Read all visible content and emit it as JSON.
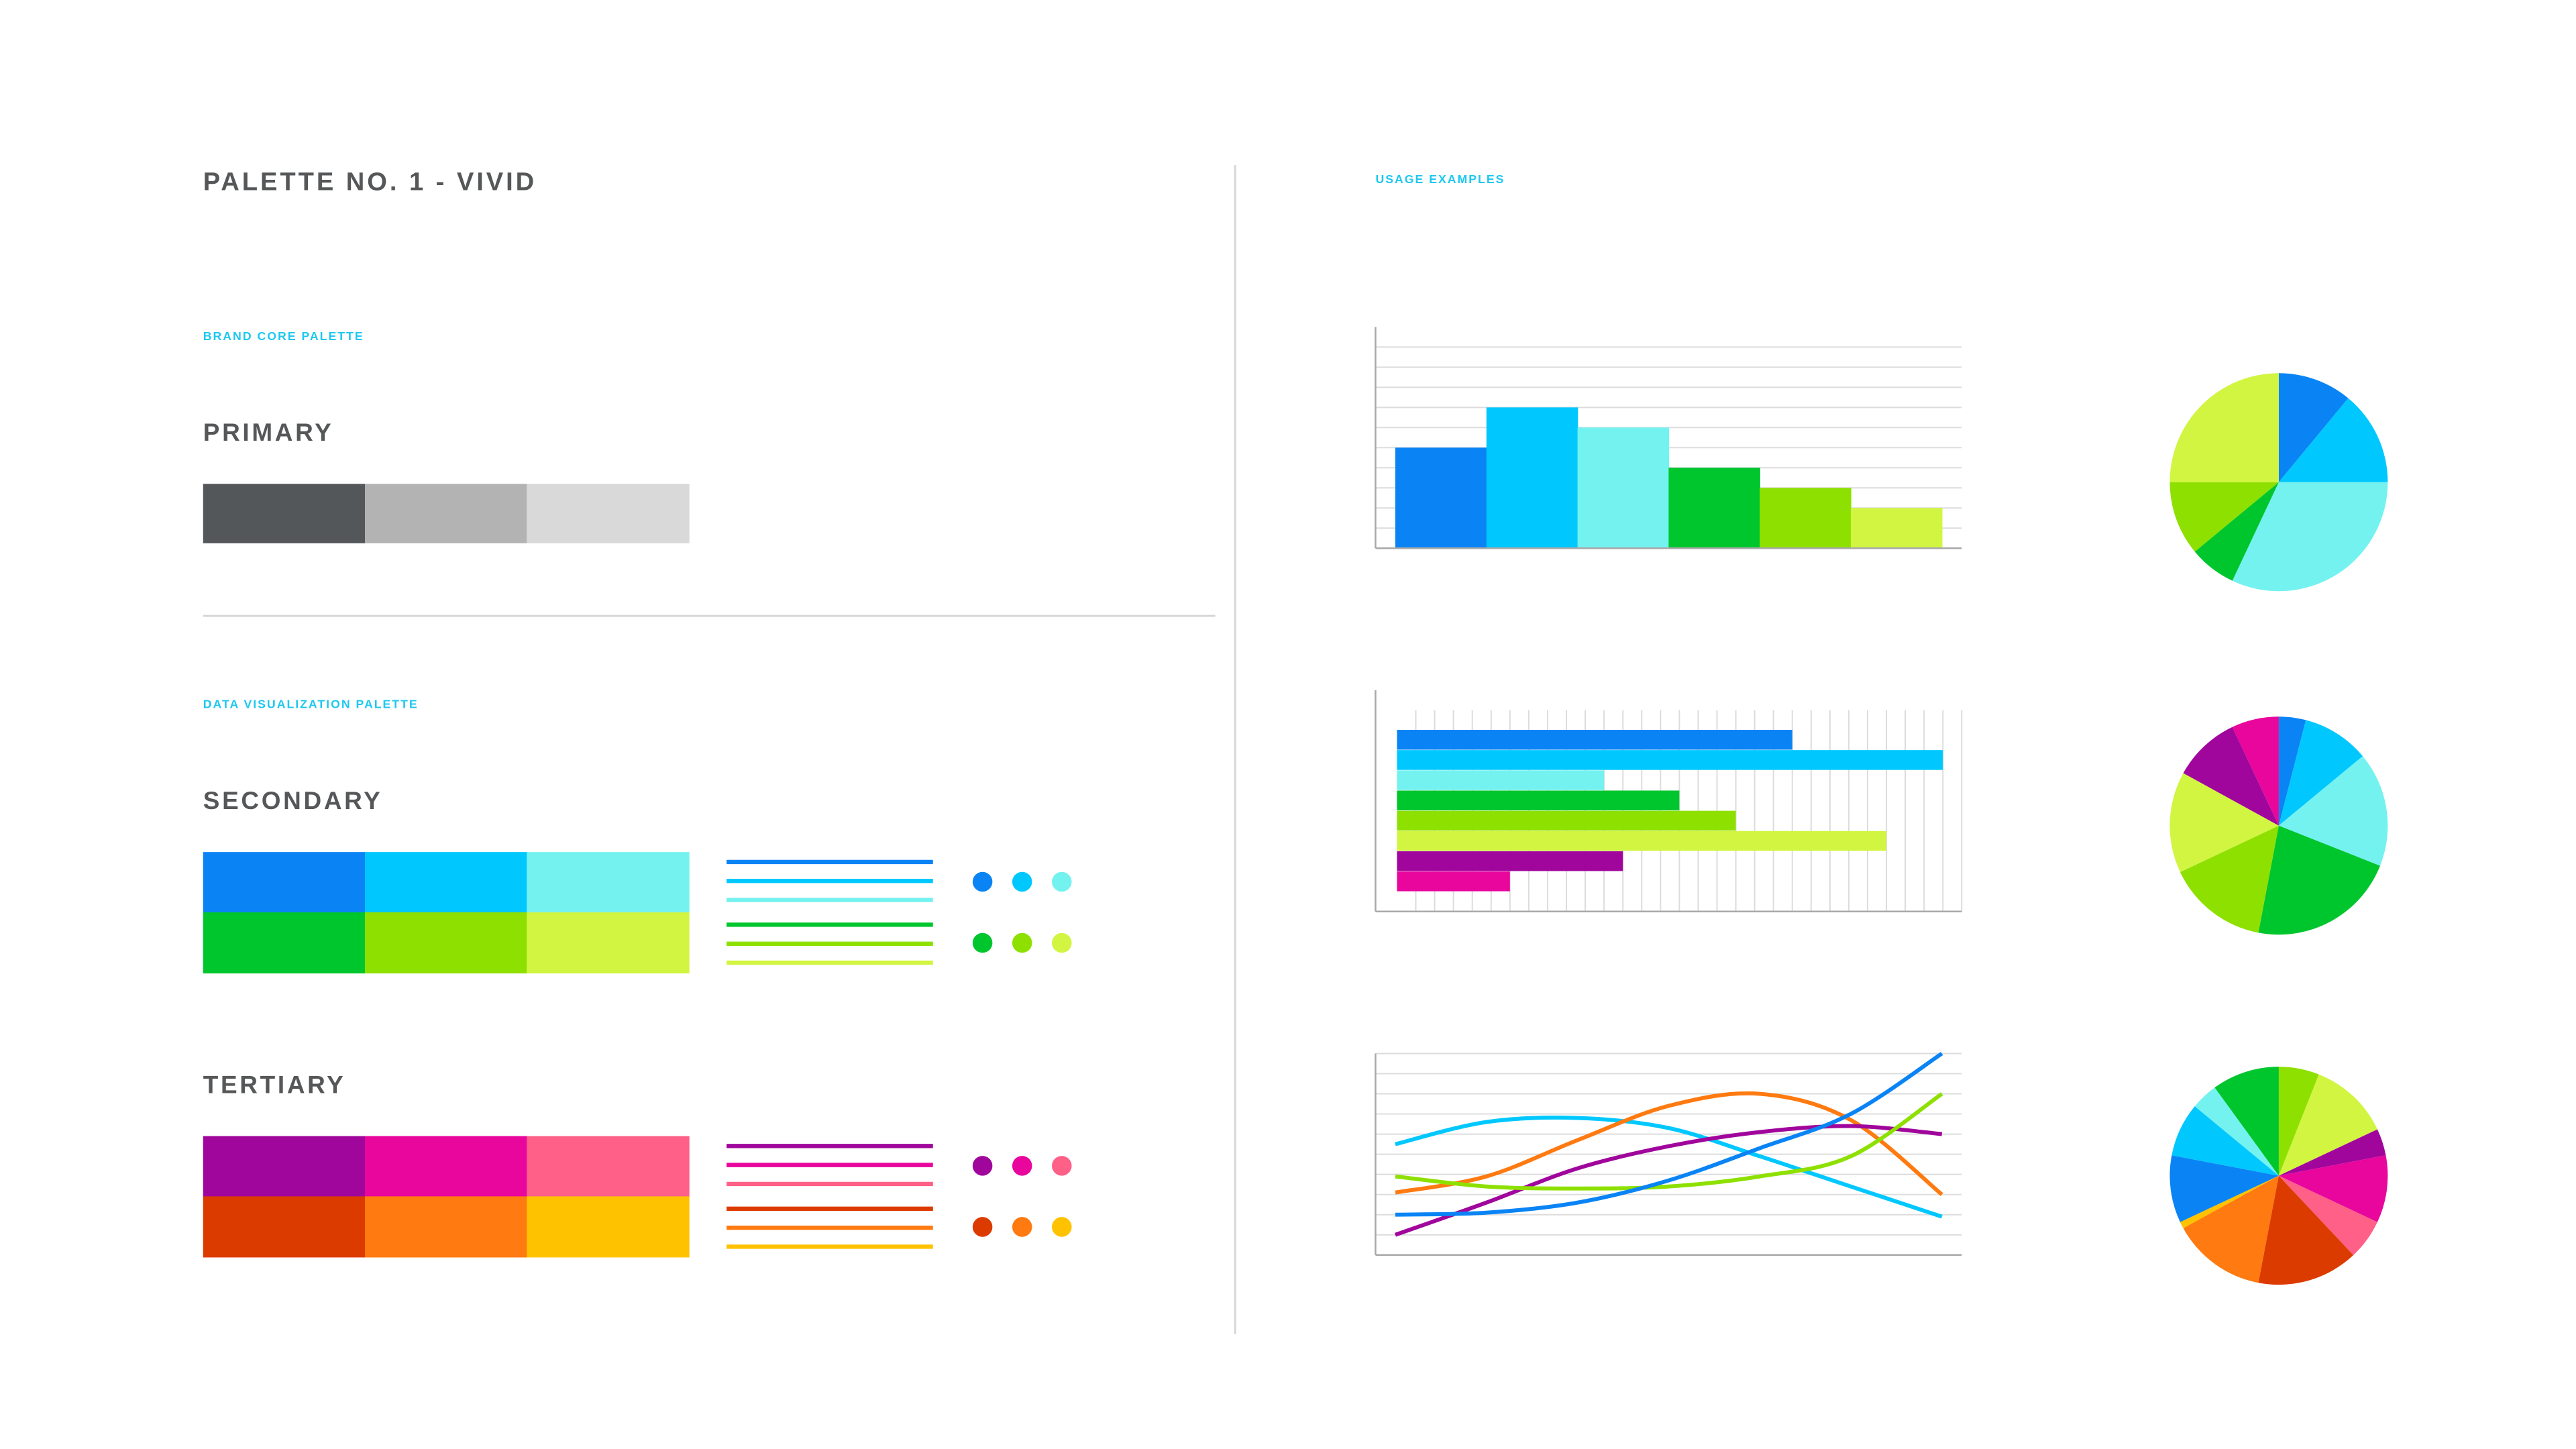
{
  "title": "PALETTE NO. 1 - VIVID",
  "usage_title": "USAGE EXAMPLES",
  "brand_core": {
    "label": "BRAND CORE PALETTE",
    "primary": {
      "title": "PRIMARY",
      "colors": [
        "#545759",
        "#b3b3b3",
        "#d9d9d9"
      ]
    }
  },
  "data_viz": {
    "label": "DATA VISUALIZATION PALETTE",
    "secondary": {
      "title": "SECONDARY",
      "colors": [
        "#0a84f5",
        "#00c8ff",
        "#74f2f0",
        "#00c62e",
        "#8ee000",
        "#d2f542"
      ]
    },
    "tertiary": {
      "title": "TERTIARY",
      "colors": [
        "#a0069c",
        "#e8069c",
        "#ff6088",
        "#dc3b00",
        "#ff7a10",
        "#ffc200"
      ]
    }
  },
  "chart_data": [
    {
      "type": "bar",
      "orientation": "vertical",
      "values": [
        5,
        7,
        6,
        4,
        3,
        2
      ],
      "colors": [
        "#0a84f5",
        "#00c8ff",
        "#74f2f0",
        "#00c62e",
        "#8ee000",
        "#d2f542"
      ],
      "ylim": [
        0,
        11
      ],
      "yticks": [
        1,
        2,
        3,
        4,
        5,
        6,
        7,
        8,
        9,
        10
      ],
      "grid": true
    },
    {
      "type": "bar",
      "orientation": "horizontal",
      "values": [
        21,
        29,
        11,
        15,
        18,
        26,
        12,
        6
      ],
      "colors": [
        "#0a84f5",
        "#00c8ff",
        "#74f2f0",
        "#00c62e",
        "#8ee000",
        "#d2f542",
        "#a0069c",
        "#e8069c"
      ],
      "xlim": [
        0,
        30
      ],
      "xticks": [
        1,
        2,
        3,
        4,
        5,
        6,
        7,
        8,
        9,
        10,
        11,
        12,
        13,
        14,
        15,
        16,
        17,
        18,
        19,
        20,
        21,
        22,
        23,
        24,
        25,
        26,
        27,
        28,
        29,
        30
      ],
      "grid": true
    },
    {
      "type": "line",
      "x": [
        0,
        1,
        2,
        3,
        4,
        5,
        6
      ],
      "xlim": [
        0,
        6
      ],
      "ylim": [
        0,
        10
      ],
      "yticks": [
        1,
        2,
        3,
        4,
        5,
        6,
        7,
        8,
        9,
        10
      ],
      "grid": true,
      "series": [
        {
          "color": "#00c8ff",
          "values": [
            5.5,
            6.6,
            6.8,
            6.3,
            4.9,
            3.4,
            1.9
          ]
        },
        {
          "color": "#ff7a10",
          "values": [
            3.1,
            3.9,
            5.7,
            7.4,
            8.0,
            6.7,
            3.0
          ]
        },
        {
          "color": "#a0069c",
          "values": [
            1.0,
            2.6,
            4.3,
            5.4,
            6.1,
            6.4,
            6.0
          ]
        },
        {
          "color": "#8ee000",
          "values": [
            3.9,
            3.4,
            3.3,
            3.4,
            3.9,
            4.9,
            8.0
          ]
        },
        {
          "color": "#0a84f5",
          "values": [
            2.0,
            2.1,
            2.6,
            3.7,
            5.3,
            7.0,
            10.0
          ]
        }
      ]
    },
    {
      "type": "pie",
      "values": [
        11,
        14,
        32,
        7,
        11,
        25
      ],
      "colors": [
        "#0a84f5",
        "#00c8ff",
        "#74f2f0",
        "#00c62e",
        "#8ee000",
        "#d2f542"
      ]
    },
    {
      "type": "pie",
      "values": [
        4,
        10,
        17,
        22,
        15,
        15,
        10,
        7
      ],
      "colors": [
        "#0a84f5",
        "#00c8ff",
        "#74f2f0",
        "#00c62e",
        "#8ee000",
        "#d2f542",
        "#a0069c",
        "#e8069c"
      ]
    },
    {
      "type": "pie",
      "values": [
        6,
        12,
        4,
        10,
        6,
        15,
        14,
        1,
        10,
        8,
        4,
        10
      ],
      "colors": [
        "#8ee000",
        "#d2f542",
        "#a0069c",
        "#e8069c",
        "#ff6088",
        "#dc3b00",
        "#ff7a10",
        "#ffc200",
        "#0a84f5",
        "#00c8ff",
        "#74f2f0",
        "#00c62e"
      ]
    }
  ]
}
